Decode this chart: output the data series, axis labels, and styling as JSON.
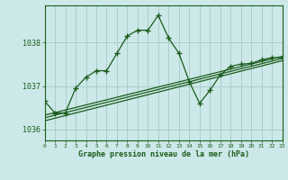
{
  "title": "Graphe pression niveau de la mer (hPa)",
  "bg_color": "#cce8e8",
  "grid_color": "#aacece",
  "line_color": "#1a5c1a",
  "x_min": 0,
  "x_max": 23,
  "y_min": 1035.75,
  "y_max": 1038.85,
  "yticks": [
    1036,
    1037,
    1038
  ],
  "xticks": [
    0,
    1,
    2,
    3,
    4,
    5,
    6,
    7,
    8,
    9,
    10,
    11,
    12,
    13,
    14,
    15,
    16,
    17,
    18,
    19,
    20,
    21,
    22,
    23
  ],
  "main_series": [
    [
      0,
      1036.65
    ],
    [
      1,
      1036.38
    ],
    [
      2,
      1036.38
    ],
    [
      3,
      1036.95
    ],
    [
      4,
      1037.2
    ],
    [
      5,
      1037.35
    ],
    [
      6,
      1037.35
    ],
    [
      7,
      1037.75
    ],
    [
      8,
      1038.15
    ],
    [
      9,
      1038.28
    ],
    [
      10,
      1038.28
    ],
    [
      11,
      1038.62
    ],
    [
      12,
      1038.1
    ],
    [
      13,
      1037.75
    ],
    [
      14,
      1037.1
    ],
    [
      15,
      1036.6
    ],
    [
      16,
      1036.9
    ],
    [
      17,
      1037.25
    ],
    [
      18,
      1037.45
    ],
    [
      19,
      1037.5
    ],
    [
      20,
      1037.52
    ],
    [
      21,
      1037.6
    ],
    [
      22,
      1037.65
    ],
    [
      23,
      1037.65
    ]
  ],
  "trend_lines": [
    [
      0,
      1036.2,
      23,
      1037.58
    ],
    [
      0,
      1036.27,
      23,
      1037.63
    ],
    [
      0,
      1036.33,
      23,
      1037.68
    ]
  ]
}
